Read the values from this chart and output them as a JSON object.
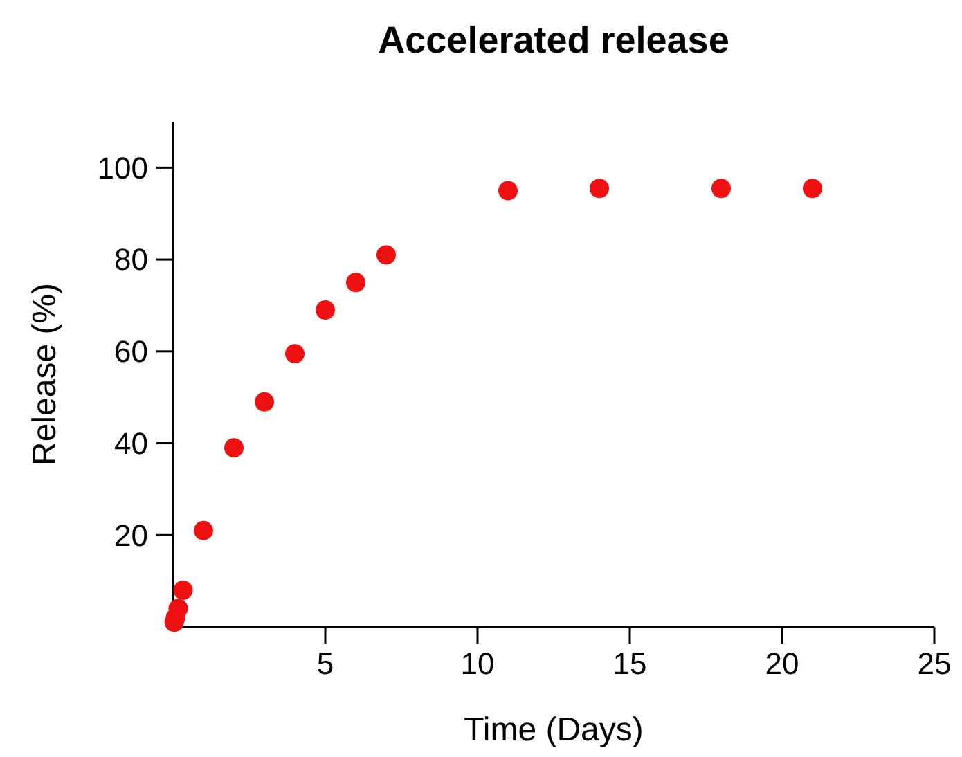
{
  "chart_data": {
    "type": "scatter",
    "title": "Accelerated release",
    "xlabel": "Time (Days)",
    "ylabel": "Release (%)",
    "x": [
      0.04,
      0.08,
      0.17,
      0.33,
      1,
      2,
      3,
      4,
      5,
      6,
      7,
      11,
      14,
      18,
      21
    ],
    "series": [
      {
        "color": "#ee1111",
        "values": [
          1,
          2,
          4,
          8,
          21,
          39,
          49,
          59.5,
          69,
          75,
          81,
          95,
          95.5,
          95.5,
          95.5
        ]
      }
    ],
    "xlim": [
      0,
      25
    ],
    "ylim": [
      0,
      110
    ],
    "xticks": [
      5,
      10,
      15,
      20,
      25
    ],
    "yticks": [
      20,
      40,
      60,
      80,
      100
    ],
    "marker": "circle",
    "grid": false
  }
}
